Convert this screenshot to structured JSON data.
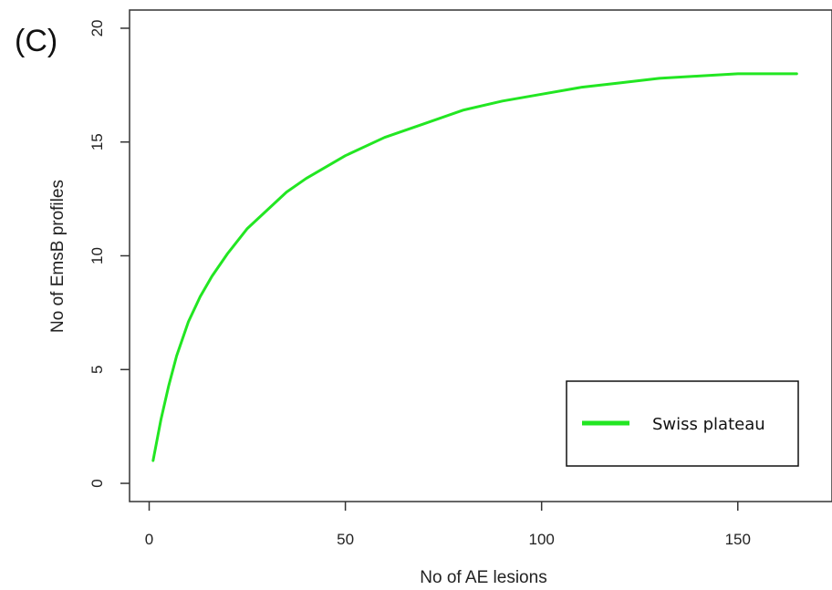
{
  "panel_label": "(C)",
  "chart_data": {
    "type": "line",
    "title": "",
    "xlabel": "No of AE lesions",
    "ylabel": "No of EmsB profiles",
    "xlim": [
      -5,
      174
    ],
    "ylim": [
      -0.8,
      20.8
    ],
    "xticks": [
      0,
      50,
      100,
      150
    ],
    "yticks": [
      0,
      5,
      10,
      15,
      20
    ],
    "grid": false,
    "legend_position": "bottom-right",
    "series": [
      {
        "name": "Swiss plateau",
        "color": "#22e622",
        "x": [
          1,
          3,
          5,
          7,
          10,
          13,
          16,
          20,
          25,
          30,
          35,
          40,
          50,
          60,
          70,
          80,
          90,
          100,
          110,
          120,
          130,
          140,
          150,
          160,
          165
        ],
        "y": [
          1.0,
          2.8,
          4.3,
          5.6,
          7.1,
          8.2,
          9.1,
          10.1,
          11.2,
          12.0,
          12.8,
          13.4,
          14.4,
          15.2,
          15.8,
          16.4,
          16.8,
          17.1,
          17.4,
          17.6,
          17.8,
          17.9,
          18.0,
          18.0,
          18.0
        ]
      }
    ]
  }
}
